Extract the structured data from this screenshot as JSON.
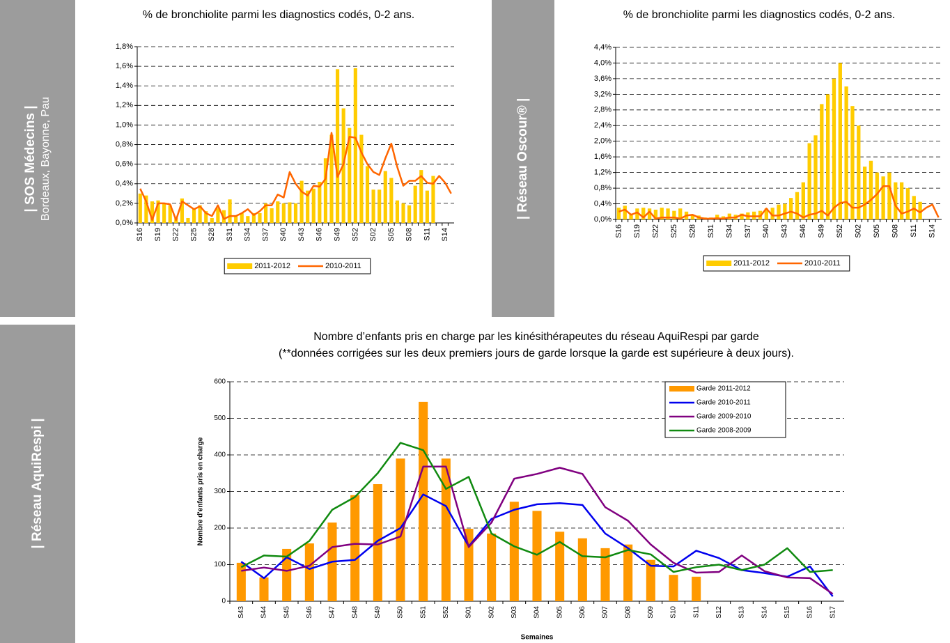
{
  "side_labels": [
    {
      "title": "| SOS Médecins |",
      "subtitle": "Bordeaux, Bayonne, Pau"
    },
    {
      "title": "| Réseau Oscour® |"
    },
    {
      "title": "| Réseau AquiRespi |"
    }
  ],
  "chart_data": [
    {
      "type": "combo",
      "title": "% de bronchiolite parmi les diagnostics codés, 0-2 ans.",
      "categories": [
        "S16",
        null,
        null,
        "S19",
        null,
        null,
        "S22",
        null,
        null,
        "S25",
        null,
        null,
        "S28",
        null,
        null,
        "S31",
        null,
        null,
        "S34",
        null,
        null,
        "S37",
        null,
        null,
        "S40",
        null,
        null,
        "S43",
        null,
        null,
        "S46",
        null,
        null,
        "S49",
        null,
        null,
        "S52",
        null,
        null,
        "S02",
        null,
        null,
        "S05",
        null,
        null,
        "S08",
        null,
        null,
        "S11",
        null,
        null,
        "S14",
        null
      ],
      "series": [
        {
          "name": "2011-2012",
          "type": "bar",
          "color": "#ffcc00",
          "values": [
            0.3,
            0.28,
            0.22,
            0.23,
            0.2,
            0.18,
            0.05,
            0.25,
            0.05,
            0.15,
            0.18,
            0.12,
            0.05,
            0.15,
            0.13,
            0.24,
            0.07,
            0.1,
            0.07,
            0.1,
            0.1,
            0.2,
            0.15,
            0.22,
            0.2,
            0.21,
            0.2,
            0.43,
            0.33,
            0.35,
            0.42,
            0.66,
            0.9,
            1.57,
            1.17,
            0.97,
            1.58,
            0.9,
            0.58,
            0.34,
            0.34,
            0.53,
            0.46,
            0.23,
            0.2,
            0.18,
            0.38,
            0.54,
            0.33,
            0.48,
            null,
            null,
            null
          ]
        },
        {
          "name": "2010-2011",
          "type": "line",
          "color": "#ff6600",
          "values": [
            0.35,
            0.22,
            0.03,
            0.2,
            0.2,
            0.19,
            0.03,
            0.22,
            0.18,
            0.14,
            0.17,
            0.1,
            0.07,
            0.18,
            0.04,
            0.07,
            0.07,
            0.1,
            0.14,
            0.08,
            0.12,
            0.18,
            0.18,
            0.29,
            0.26,
            0.52,
            0.4,
            0.32,
            0.28,
            0.38,
            0.37,
            0.45,
            0.92,
            0.47,
            0.6,
            0.88,
            0.87,
            0.72,
            0.6,
            0.52,
            0.49,
            0.66,
            0.81,
            0.57,
            0.38,
            0.43,
            0.43,
            0.48,
            0.41,
            0.4,
            0.48,
            0.41,
            0.3
          ]
        }
      ],
      "ylim": [
        0,
        1.8
      ],
      "yticks": [
        {
          "value": 0,
          "label": "0,0%"
        },
        {
          "value": 0.2,
          "label": "0,2%"
        },
        {
          "value": 0.4,
          "label": "0,4%"
        },
        {
          "value": 0.6,
          "label": "0,6%"
        },
        {
          "value": 0.8,
          "label": "0,8%"
        },
        {
          "value": 1.0,
          "label": "1,0%"
        },
        {
          "value": 1.2,
          "label": "1,2%"
        },
        {
          "value": 1.4,
          "label": "1,4%"
        },
        {
          "value": 1.6,
          "label": "1,6%"
        },
        {
          "value": 1.8,
          "label": "1,8%"
        }
      ],
      "grid": true,
      "legend": "bottom"
    },
    {
      "type": "combo",
      "title": "% de bronchiolite parmi les diagnostics codés, 0-2 ans.",
      "categories": [
        "S16",
        null,
        null,
        "S19",
        null,
        null,
        "S22",
        null,
        null,
        "S25",
        null,
        null,
        "S28",
        null,
        null,
        "S31",
        null,
        null,
        "S34",
        null,
        null,
        "S37",
        null,
        null,
        "S40",
        null,
        null,
        "S43",
        null,
        null,
        "S46",
        null,
        null,
        "S49",
        null,
        null,
        "S52",
        null,
        null,
        "S02",
        null,
        null,
        "S05",
        null,
        null,
        "S08",
        null,
        null,
        "S11",
        null,
        null,
        "S14",
        null
      ],
      "series": [
        {
          "name": "2011-2012",
          "type": "bar",
          "color": "#ffcc00",
          "values": [
            0.3,
            0.35,
            0.15,
            0.28,
            0.3,
            0.28,
            0.25,
            0.3,
            0.28,
            0.22,
            0.28,
            0.2,
            0.12,
            0.1,
            0.05,
            0.05,
            0.12,
            0.08,
            0.15,
            0.12,
            0.15,
            0.18,
            0.2,
            0.22,
            0.28,
            0.3,
            0.38,
            0.4,
            0.55,
            0.7,
            0.95,
            1.95,
            2.15,
            2.95,
            3.2,
            3.6,
            4.0,
            3.4,
            2.9,
            2.4,
            1.35,
            1.5,
            1.2,
            1.1,
            1.2,
            0.95,
            0.95,
            0.8,
            0.6,
            0.45,
            null,
            null,
            null
          ]
        },
        {
          "name": "2010-2011",
          "type": "line",
          "color": "#ff6600",
          "values": [
            0.2,
            0.25,
            0.12,
            0.18,
            0.05,
            0.2,
            0.02,
            0.05,
            0.05,
            0.05,
            0.02,
            0.1,
            0.12,
            0.05,
            0.02,
            0.02,
            0.03,
            0.02,
            0.05,
            0.05,
            0.12,
            0.08,
            0.08,
            0.08,
            0.28,
            0.1,
            0.1,
            0.15,
            0.2,
            0.15,
            0.05,
            0.12,
            0.15,
            0.22,
            0.1,
            0.3,
            0.42,
            0.45,
            0.3,
            0.3,
            0.38,
            0.5,
            0.65,
            0.85,
            0.85,
            0.35,
            0.15,
            0.2,
            0.28,
            0.18,
            0.3,
            0.38,
            0.05
          ]
        }
      ],
      "ylim": [
        0,
        4.4
      ],
      "yticks": [
        {
          "value": 0,
          "label": "0,0%"
        },
        {
          "value": 0.4,
          "label": "0,4%"
        },
        {
          "value": 0.8,
          "label": "0,8%"
        },
        {
          "value": 1.2,
          "label": "1,2%"
        },
        {
          "value": 1.6,
          "label": "1,6%"
        },
        {
          "value": 2.0,
          "label": "2,0%"
        },
        {
          "value": 2.4,
          "label": "2,4%"
        },
        {
          "value": 2.8,
          "label": "2,8%"
        },
        {
          "value": 3.2,
          "label": "3,2%"
        },
        {
          "value": 3.6,
          "label": "3,6%"
        },
        {
          "value": 4.0,
          "label": "4,0%"
        },
        {
          "value": 4.4,
          "label": "4,4%"
        }
      ],
      "grid": true,
      "legend": "bottom"
    },
    {
      "type": "combo",
      "title": "Nombre d’enfants pris en charge par les kinésithérapeutes du réseau AquiRespi par garde",
      "subtitle": "(**données corrigées sur les deux premiers jours de garde lorsque la garde est supérieure à deux jours).",
      "x_label": "Semaines",
      "y_label": "Nombre d'enfants pris en charge",
      "categories": [
        "S43",
        "S44",
        "S45",
        "S46",
        "S47",
        "S48",
        "S49",
        "S50",
        "S51",
        "S52",
        "S01",
        "S02",
        "S03",
        "S04",
        "S05",
        "S06",
        "S07",
        "S08",
        "S09",
        "S10",
        "S11",
        "S12",
        "S13",
        "S14",
        "S15",
        "S16",
        "S17"
      ],
      "series": [
        {
          "name": "Garde 2011-2012",
          "type": "bar",
          "color": "#ff9900",
          "values": [
            105,
            65,
            143,
            158,
            215,
            290,
            320,
            390,
            545,
            390,
            198,
            185,
            272,
            247,
            190,
            172,
            145,
            155,
            113,
            72,
            67,
            null,
            null,
            null,
            null,
            null,
            null
          ]
        },
        {
          "name": "Garde 2010-2011",
          "type": "line",
          "color": "#0000ee",
          "values": [
            108,
            63,
            120,
            88,
            108,
            113,
            165,
            200,
            292,
            260,
            150,
            225,
            250,
            265,
            268,
            263,
            185,
            145,
            97,
            95,
            138,
            118,
            85,
            77,
            67,
            95,
            13
          ]
        },
        {
          "name": "Garde 2009-2010",
          "type": "line",
          "color": "#800080",
          "values": [
            83,
            92,
            83,
            97,
            148,
            157,
            155,
            177,
            368,
            368,
            148,
            215,
            335,
            348,
            365,
            348,
            257,
            220,
            155,
            105,
            78,
            80,
            125,
            82,
            65,
            63,
            20
          ]
        },
        {
          "name": "Garde 2008-2009",
          "type": "line",
          "color": "#108a10",
          "values": [
            93,
            125,
            122,
            165,
            250,
            285,
            350,
            433,
            413,
            307,
            340,
            185,
            150,
            127,
            162,
            123,
            120,
            140,
            128,
            80,
            93,
            100,
            85,
            100,
            145,
            80,
            85
          ]
        }
      ],
      "ylim": [
        0,
        600
      ],
      "yticks": [
        0,
        100,
        200,
        300,
        400,
        500,
        600
      ],
      "grid": true,
      "legend": "upper right"
    }
  ]
}
